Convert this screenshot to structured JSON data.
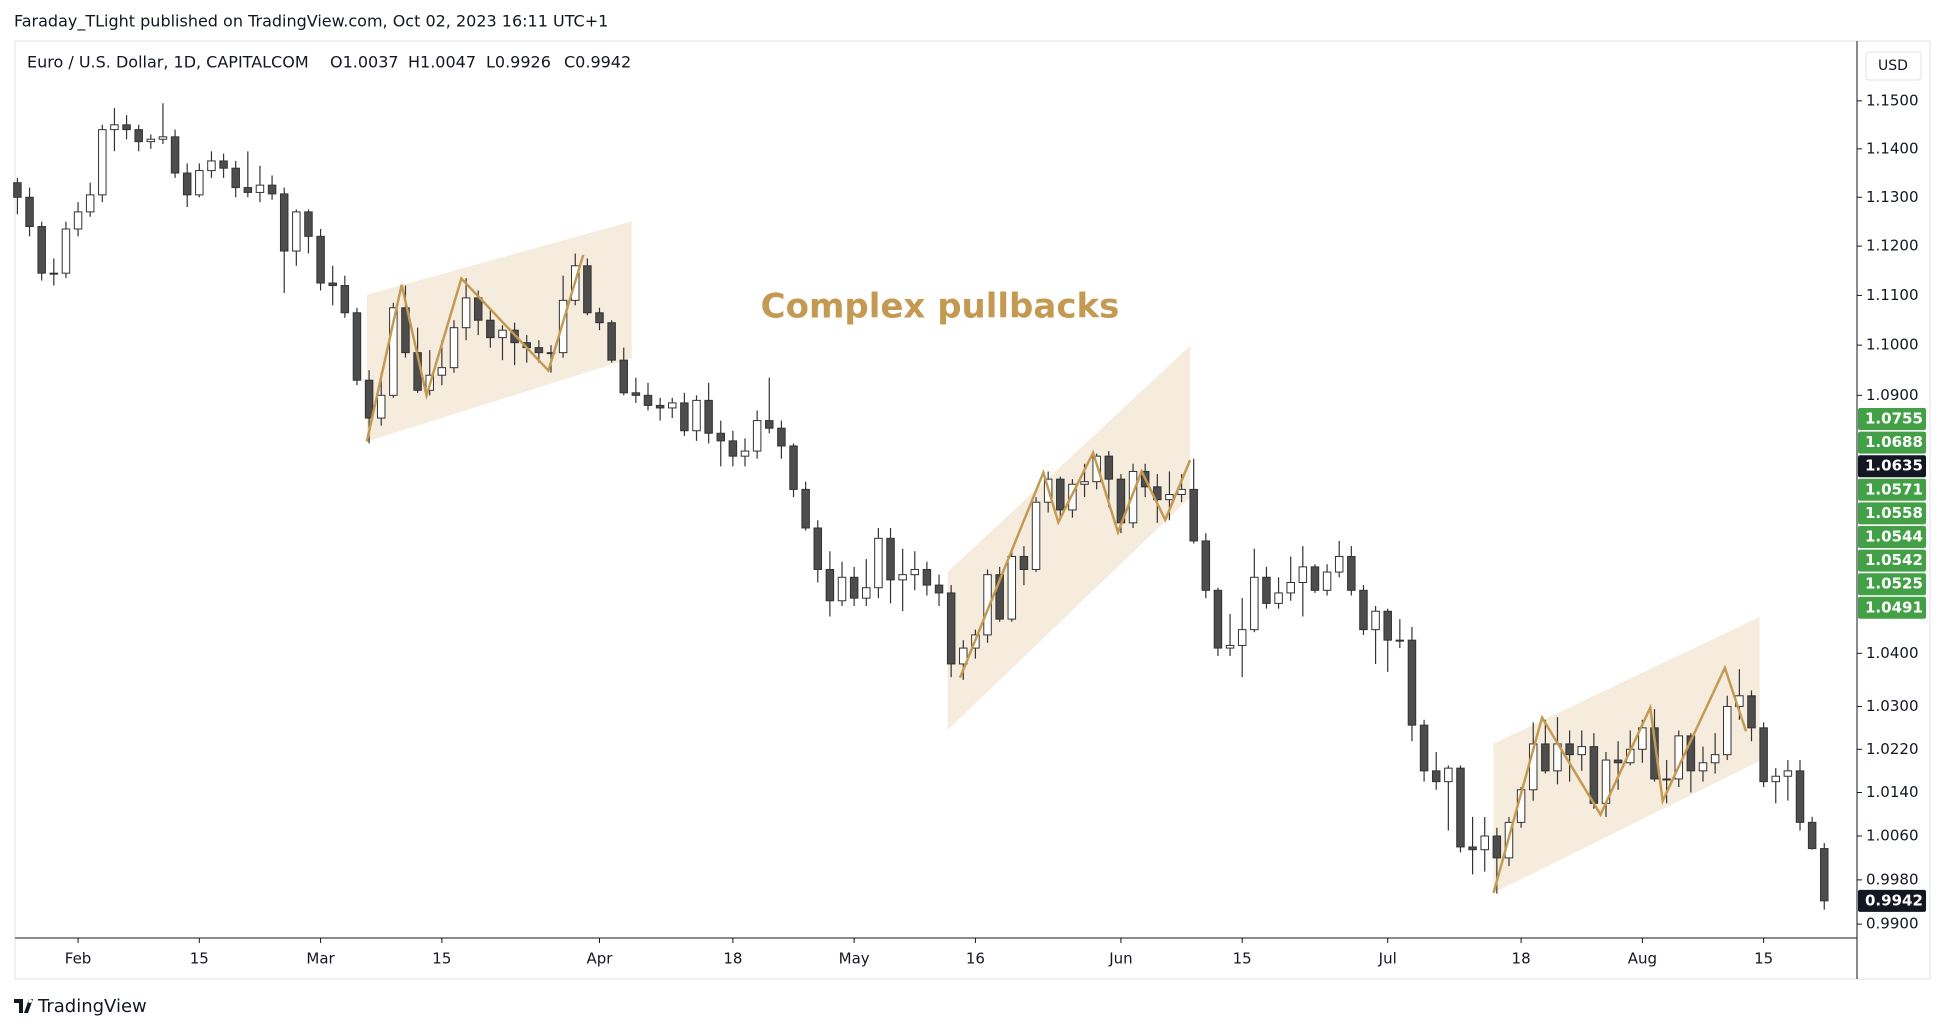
{
  "header": {
    "published": "Faraday_TLight published on TradingView.com, Oct 02, 2023 16:11 UTC+1",
    "footer": "TradingView"
  },
  "chart_data": {
    "type": "candlestick",
    "symbol": "Euro / U.S. Dollar, 1D, CAPITALCOM",
    "ohlc_legend": [
      "O1.0037",
      "H1.0047",
      "L0.9926",
      "C0.9942"
    ],
    "currency": "USD",
    "annotation": "Complex pullbacks",
    "log_scale": true,
    "grid": false,
    "up_color": "#ffffff",
    "down_color": "#4d4d4d",
    "wick_color": "#333333",
    "ylim": [
      0.9875,
      1.1626
    ],
    "yticks": [
      {
        "value": 1.15,
        "label": "1.1500"
      },
      {
        "value": 1.14,
        "label": "1.1400"
      },
      {
        "value": 1.13,
        "label": "1.1300"
      },
      {
        "value": 1.12,
        "label": "1.1200"
      },
      {
        "value": 1.11,
        "label": "1.1100"
      },
      {
        "value": 1.1,
        "label": "1.1000"
      },
      {
        "value": 1.09,
        "label": "1.0900"
      },
      {
        "value": 1.04,
        "label": "1.0400"
      },
      {
        "value": 1.03,
        "label": "1.0300"
      },
      {
        "value": 1.022,
        "label": "1.0220"
      },
      {
        "value": 1.014,
        "label": "1.0140"
      },
      {
        "value": 1.006,
        "label": "1.0060"
      },
      {
        "value": 0.998,
        "label": "0.9980"
      },
      {
        "value": 0.99,
        "label": "0.9900"
      }
    ],
    "xlim": [
      -0.2,
      151.7
    ],
    "xticks": [
      {
        "value": 5,
        "label": "Feb"
      },
      {
        "value": 15,
        "label": "15"
      },
      {
        "value": 25,
        "label": "Mar"
      },
      {
        "value": 35,
        "label": "15"
      },
      {
        "value": 48,
        "label": "Apr"
      },
      {
        "value": 59,
        "label": "18"
      },
      {
        "value": 69,
        "label": "May"
      },
      {
        "value": 79,
        "label": "16"
      },
      {
        "value": 91,
        "label": "Jun"
      },
      {
        "value": 101,
        "label": "15"
      },
      {
        "value": 113,
        "label": "Jul"
      },
      {
        "value": 124,
        "label": "18"
      },
      {
        "value": 134,
        "label": "Aug"
      },
      {
        "value": 144,
        "label": "15"
      }
    ],
    "price_labels": [
      1.0755,
      1.0688,
      1.0635,
      1.0571,
      1.0558,
      1.0544,
      1.0542,
      1.0525,
      1.0491
    ],
    "price_label_colors": [
      "#43a047",
      "#43a047",
      "#131722",
      "#43a047",
      "#43a047",
      "#43a047",
      "#43a047",
      "#43a047",
      "#43a047"
    ],
    "last_price": 0.9942,
    "last_price_color": "#131722",
    "candles": [
      [
        1.133,
        1.134,
        1.1265,
        1.13
      ],
      [
        1.13,
        1.132,
        1.122,
        1.124
      ],
      [
        1.124,
        1.125,
        1.113,
        1.1145
      ],
      [
        1.1145,
        1.1175,
        1.112,
        1.1145
      ],
      [
        1.1145,
        1.125,
        1.1135,
        1.1235
      ],
      [
        1.1235,
        1.129,
        1.122,
        1.127
      ],
      [
        1.127,
        1.133,
        1.126,
        1.1305
      ],
      [
        1.1305,
        1.145,
        1.129,
        1.144
      ],
      [
        1.144,
        1.1485,
        1.1395,
        1.145
      ],
      [
        1.145,
        1.147,
        1.142,
        1.144
      ],
      [
        1.144,
        1.145,
        1.1395,
        1.1415
      ],
      [
        1.1415,
        1.143,
        1.14,
        1.142
      ],
      [
        1.142,
        1.1495,
        1.141,
        1.1425
      ],
      [
        1.1425,
        1.144,
        1.134,
        1.135
      ],
      [
        1.135,
        1.137,
        1.128,
        1.1305
      ],
      [
        1.1305,
        1.137,
        1.13,
        1.1355
      ],
      [
        1.1355,
        1.1395,
        1.134,
        1.1375
      ],
      [
        1.1375,
        1.139,
        1.134,
        1.136
      ],
      [
        1.136,
        1.1375,
        1.13,
        1.132
      ],
      [
        1.132,
        1.1395,
        1.13,
        1.131
      ],
      [
        1.131,
        1.1365,
        1.129,
        1.1325
      ],
      [
        1.1325,
        1.1345,
        1.1295,
        1.1307
      ],
      [
        1.1307,
        1.132,
        1.1105,
        1.119
      ],
      [
        1.119,
        1.1275,
        1.116,
        1.127
      ],
      [
        1.127,
        1.1275,
        1.1185,
        1.122
      ],
      [
        1.122,
        1.1235,
        1.111,
        1.1125
      ],
      [
        1.1125,
        1.116,
        1.108,
        1.112
      ],
      [
        1.112,
        1.114,
        1.1055,
        1.1065
      ],
      [
        1.1065,
        1.1075,
        1.092,
        1.093
      ],
      [
        1.093,
        1.095,
        1.0805,
        1.0855
      ],
      [
        1.0855,
        1.0945,
        1.084,
        1.09
      ],
      [
        1.09,
        1.1085,
        1.0895,
        1.1075
      ],
      [
        1.1075,
        1.112,
        1.0975,
        1.0985
      ],
      [
        1.0985,
        1.1035,
        1.0905,
        1.091
      ],
      [
        1.091,
        1.099,
        1.09,
        1.094
      ],
      [
        1.094,
        1.101,
        1.092,
        1.0955
      ],
      [
        1.0955,
        1.105,
        1.0945,
        1.1035
      ],
      [
        1.1035,
        1.1135,
        1.101,
        1.1095
      ],
      [
        1.1095,
        1.111,
        1.102,
        1.105
      ],
      [
        1.105,
        1.107,
        1.0995,
        1.1015
      ],
      [
        1.1015,
        1.104,
        1.097,
        1.103
      ],
      [
        1.103,
        1.1045,
        1.096,
        1.1005
      ],
      [
        1.1005,
        1.102,
        1.0965,
        1.0995
      ],
      [
        1.0995,
        1.101,
        1.0965,
        1.0985
      ],
      [
        1.0985,
        1.1,
        1.0945,
        1.0985
      ],
      [
        1.0985,
        1.114,
        1.0975,
        1.109
      ],
      [
        1.109,
        1.1185,
        1.108,
        1.116
      ],
      [
        1.116,
        1.1175,
        1.106,
        1.1065
      ],
      [
        1.1065,
        1.1075,
        1.103,
        1.1045
      ],
      [
        1.1045,
        1.105,
        1.0965,
        1.097
      ],
      [
        1.097,
        1.0995,
        1.09,
        1.0905
      ],
      [
        1.0905,
        1.0935,
        1.0885,
        1.09
      ],
      [
        1.09,
        1.0925,
        1.087,
        1.088
      ],
      [
        1.088,
        1.0895,
        1.085,
        1.0875
      ],
      [
        1.0875,
        1.0895,
        1.0855,
        1.0885
      ],
      [
        1.0885,
        1.0905,
        1.082,
        1.083
      ],
      [
        1.083,
        1.09,
        1.081,
        1.089
      ],
      [
        1.089,
        1.0925,
        1.0805,
        1.0825
      ],
      [
        1.0825,
        1.085,
        1.076,
        1.081
      ],
      [
        1.081,
        1.083,
        1.076,
        1.078
      ],
      [
        1.078,
        1.0815,
        1.076,
        1.079
      ],
      [
        1.079,
        1.087,
        1.0775,
        1.085
      ],
      [
        1.085,
        1.0935,
        1.0825,
        1.0835
      ],
      [
        1.0835,
        1.085,
        1.0775,
        1.08
      ],
      [
        1.08,
        1.0805,
        1.07,
        1.0715
      ],
      [
        1.0715,
        1.073,
        1.0635,
        1.064
      ],
      [
        1.064,
        1.0655,
        1.0535,
        1.056
      ],
      [
        1.056,
        1.0595,
        1.047,
        1.05
      ],
      [
        1.05,
        1.0575,
        1.049,
        1.0545
      ],
      [
        1.0545,
        1.0565,
        1.049,
        1.0505
      ],
      [
        1.0505,
        1.058,
        1.049,
        1.0525
      ],
      [
        1.0525,
        1.064,
        1.0505,
        1.062
      ],
      [
        1.062,
        1.064,
        1.0495,
        1.054
      ],
      [
        1.054,
        1.06,
        1.048,
        1.055
      ],
      [
        1.055,
        1.0595,
        1.052,
        1.056
      ],
      [
        1.056,
        1.0575,
        1.051,
        1.053
      ],
      [
        1.053,
        1.055,
        1.049,
        1.0515
      ],
      [
        1.0515,
        1.053,
        1.0355,
        1.038
      ],
      [
        1.038,
        1.0425,
        1.035,
        1.041
      ],
      [
        1.041,
        1.0445,
        1.039,
        1.0435
      ],
      [
        1.0435,
        1.056,
        1.042,
        1.055
      ],
      [
        1.055,
        1.0565,
        1.046,
        1.0465
      ],
      [
        1.0465,
        1.06,
        1.046,
        1.0585
      ],
      [
        1.0585,
        1.0605,
        1.053,
        1.056
      ],
      [
        1.056,
        1.07,
        1.0555,
        1.069
      ],
      [
        1.069,
        1.075,
        1.067,
        1.0735
      ],
      [
        1.0735,
        1.074,
        1.0655,
        1.0675
      ],
      [
        1.0675,
        1.0735,
        1.066,
        1.0725
      ],
      [
        1.0725,
        1.0765,
        1.07,
        1.073
      ],
      [
        1.073,
        1.0785,
        1.0715,
        1.078
      ],
      [
        1.078,
        1.079,
        1.068,
        1.0735
      ],
      [
        1.0735,
        1.0745,
        1.063,
        1.065
      ],
      [
        1.065,
        1.0765,
        1.064,
        1.075
      ],
      [
        1.075,
        1.0765,
        1.07,
        1.072
      ],
      [
        1.072,
        1.0745,
        1.065,
        1.0695
      ],
      [
        1.0695,
        1.075,
        1.0655,
        1.0705
      ],
      [
        1.0705,
        1.0745,
        1.069,
        1.0715
      ],
      [
        1.0715,
        1.0775,
        1.061,
        1.0615
      ],
      [
        1.0615,
        1.063,
        1.0505,
        1.052
      ],
      [
        1.052,
        1.0525,
        1.0395,
        1.041
      ],
      [
        1.041,
        1.0475,
        1.0395,
        1.0415
      ],
      [
        1.0415,
        1.0505,
        1.0355,
        1.0445
      ],
      [
        1.0445,
        1.06,
        1.044,
        1.0545
      ],
      [
        1.0545,
        1.0565,
        1.0485,
        1.0495
      ],
      [
        1.0495,
        1.0545,
        1.0485,
        1.0515
      ],
      [
        1.0515,
        1.0585,
        1.05,
        1.0535
      ],
      [
        1.0535,
        1.0605,
        1.047,
        1.0565
      ],
      [
        1.0565,
        1.057,
        1.0515,
        1.052
      ],
      [
        1.052,
        1.057,
        1.051,
        1.0555
      ],
      [
        1.0555,
        1.0615,
        1.0545,
        1.0585
      ],
      [
        1.0585,
        1.0605,
        1.051,
        1.052
      ],
      [
        1.052,
        1.053,
        1.0435,
        1.0445
      ],
      [
        1.0445,
        1.049,
        1.038,
        1.048
      ],
      [
        1.048,
        1.0485,
        1.0365,
        1.0425
      ],
      [
        1.0425,
        1.0465,
        1.041,
        1.0425
      ],
      [
        1.0425,
        1.045,
        1.0235,
        1.0265
      ],
      [
        1.0265,
        1.0275,
        1.016,
        1.018
      ],
      [
        1.018,
        1.0215,
        1.0145,
        1.016
      ],
      [
        1.016,
        1.019,
        1.007,
        1.0185
      ],
      [
        1.0185,
        1.019,
        1.003,
        1.004
      ],
      [
        1.004,
        1.0095,
        0.999,
        1.0035
      ],
      [
        1.0035,
        1.0095,
        0.9995,
        1.006
      ],
      [
        1.006,
        1.0075,
        0.9955,
        1.002
      ],
      [
        1.002,
        1.0095,
        1.0005,
        1.0085
      ],
      [
        1.0085,
        1.015,
        1.0075,
        1.0145
      ],
      [
        1.0145,
        1.027,
        1.0125,
        1.023
      ],
      [
        1.023,
        1.0275,
        1.0175,
        1.018
      ],
      [
        1.018,
        1.028,
        1.0155,
        1.023
      ],
      [
        1.023,
        1.0255,
        1.016,
        1.021
      ],
      [
        1.021,
        1.0255,
        1.018,
        1.0225
      ],
      [
        1.0225,
        1.025,
        1.011,
        1.012
      ],
      [
        1.012,
        1.0215,
        1.0095,
        1.02
      ],
      [
        1.02,
        1.0235,
        1.0145,
        1.0195
      ],
      [
        1.0195,
        1.0255,
        1.019,
        1.022
      ],
      [
        1.022,
        1.0275,
        1.0195,
        1.026
      ],
      [
        1.026,
        1.0295,
        1.016,
        1.0165
      ],
      [
        1.0165,
        1.02,
        1.012,
        1.0165
      ],
      [
        1.0165,
        1.0255,
        1.015,
        1.0245
      ],
      [
        1.0245,
        1.025,
        1.014,
        1.018
      ],
      [
        1.018,
        1.0225,
        1.016,
        1.0195
      ],
      [
        1.0195,
        1.025,
        1.0175,
        1.021
      ],
      [
        1.021,
        1.032,
        1.02,
        1.03
      ],
      [
        1.03,
        1.037,
        1.0275,
        1.032
      ],
      [
        1.032,
        1.033,
        1.0235,
        1.026
      ],
      [
        1.026,
        1.027,
        1.015,
        1.016
      ],
      [
        1.016,
        1.0185,
        1.012,
        1.017
      ],
      [
        1.017,
        1.02,
        1.0125,
        1.018
      ],
      [
        1.018,
        1.02,
        1.007,
        1.0085
      ],
      [
        1.0085,
        1.0095,
        1.0035,
        1.0037
      ],
      [
        1.0037,
        1.0047,
        0.9926,
        0.9942
      ]
    ]
  }
}
